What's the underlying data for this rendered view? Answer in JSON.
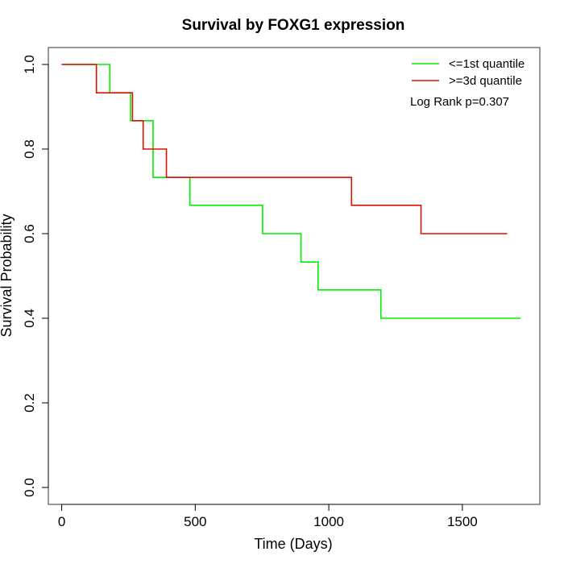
{
  "chart_data": {
    "type": "line",
    "title": "Survival by FOXG1 expression",
    "xlabel": "Time (Days)",
    "ylabel": "Survival Probability",
    "xlim": [
      -50,
      1790
    ],
    "ylim": [
      -0.04,
      1.04
    ],
    "x_ticks": [
      0,
      500,
      1000,
      1500
    ],
    "y_ticks": [
      0.0,
      0.2,
      0.4,
      0.6,
      0.8,
      1.0
    ],
    "x_tick_labels": [
      "0",
      "500",
      "1000",
      "1500"
    ],
    "y_tick_labels": [
      "0.0",
      "0.2",
      "0.4",
      "0.6",
      "0.8",
      "1.0"
    ],
    "legend_position": "top-right",
    "annotation": "Log Rank p=0.307",
    "grid": false,
    "series": [
      {
        "name": "<=1st quantile",
        "color": "#00ee00",
        "steps": [
          [
            0,
            1.0
          ],
          [
            180,
            0.933
          ],
          [
            258,
            0.867
          ],
          [
            342,
            0.733
          ],
          [
            480,
            0.667
          ],
          [
            752,
            0.6
          ],
          [
            896,
            0.533
          ],
          [
            960,
            0.467
          ],
          [
            1195,
            0.4
          ],
          [
            1718,
            0.4
          ]
        ]
      },
      {
        "name": ">=3d quantile",
        "color": "#dd1100",
        "steps": [
          [
            0,
            1.0
          ],
          [
            130,
            0.933
          ],
          [
            265,
            0.867
          ],
          [
            305,
            0.8
          ],
          [
            392,
            0.733
          ],
          [
            1085,
            0.667
          ],
          [
            1345,
            0.6
          ],
          [
            1668,
            0.6
          ]
        ]
      }
    ]
  }
}
